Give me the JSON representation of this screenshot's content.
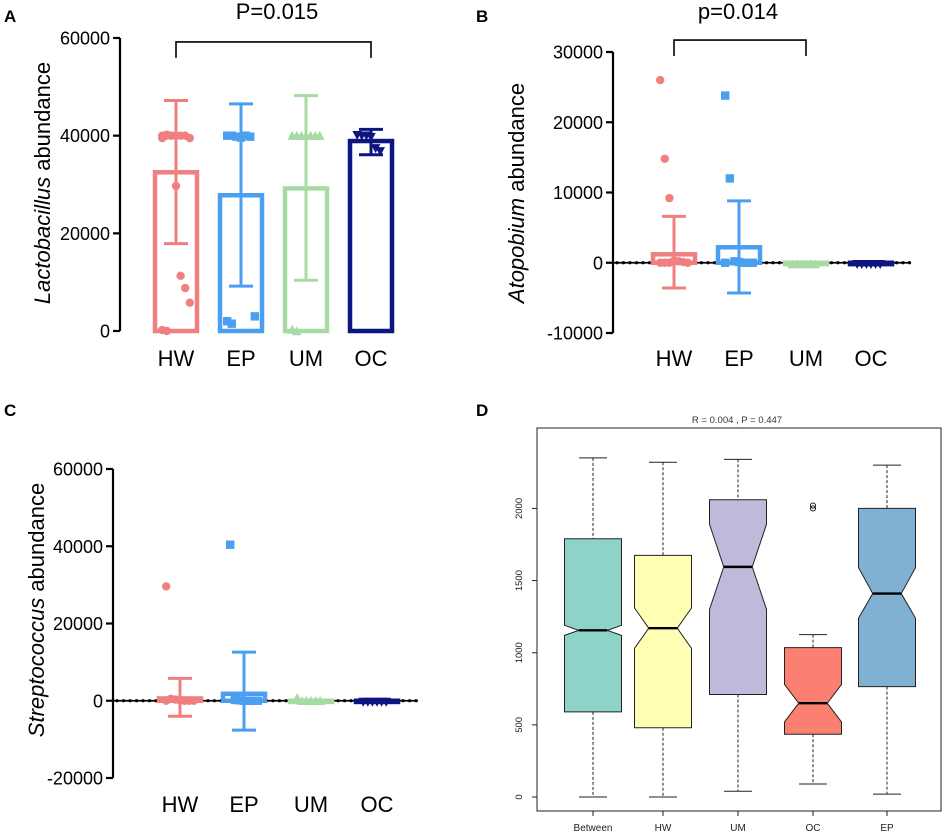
{
  "figure": {
    "panels": [
      {
        "letter": "A",
        "stat": "P=0.015"
      },
      {
        "letter": "B",
        "stat": "p=0.014"
      },
      {
        "letter": "C",
        "stat": ""
      },
      {
        "letter": "D",
        "stat": "R =  0.004 ,  P =  0.447"
      }
    ]
  },
  "colors": {
    "HW": "#f07f7f",
    "EP": "#4b9ff0",
    "UM": "#a8dba3",
    "OC": "#0d1680",
    "Between_box": "#8dd3c7",
    "HW_box": "#ffffb3",
    "UM_box": "#bebada",
    "OC_box": "#fb8072",
    "EP_box": "#80b1d3"
  },
  "chart_data": [
    {
      "panel": "A",
      "type": "bar",
      "title": "P=0.015",
      "ylabel_italic": "Lactobacillus",
      "ylabel_rest": " abundance",
      "categories": [
        "HW",
        "EP",
        "UM",
        "OC"
      ],
      "values": [
        32500,
        27800,
        29200,
        38900
      ],
      "error_low": [
        17900,
        9200,
        10400,
        36100
      ],
      "error_high": [
        47200,
        46500,
        48200,
        41300
      ],
      "ylim": [
        0,
        60000
      ],
      "yticks": [
        "0",
        "20000",
        "40000",
        "60000"
      ],
      "yticks_values": [
        0,
        20000,
        40000,
        60000
      ],
      "points": [
        [
          40000,
          40000,
          40000,
          40000,
          40000,
          40000,
          39500,
          39500,
          40200,
          40000,
          29700,
          11300,
          8800,
          5800,
          200,
          0
        ],
        [
          40000,
          40000,
          39800,
          39600,
          40000,
          39800,
          3000,
          2000,
          1500
        ],
        [
          40000,
          40000,
          40000,
          40000,
          40000,
          40000,
          40000,
          300,
          0
        ],
        [
          40100,
          40000,
          40000,
          39700,
          37400,
          36800
        ]
      ],
      "markers": [
        "circle",
        "square",
        "triangle",
        "triangle-down"
      ],
      "bracket": {
        "from": 0,
        "to": 3,
        "y": 59200
      }
    },
    {
      "panel": "B",
      "type": "bar",
      "title": "p=0.014",
      "ylabel_italic": "Atopobium",
      "ylabel_rest": " abundance",
      "categories": [
        "HW",
        "EP",
        "UM",
        "OC"
      ],
      "values": [
        1200,
        2200,
        -200,
        -200
      ],
      "error_low": [
        -3600,
        -4300,
        -200,
        -200
      ],
      "error_high": [
        6600,
        8800,
        -200,
        -200
      ],
      "ylim": [
        -10000,
        30000
      ],
      "yticks": [
        "-10000",
        "0",
        "10000",
        "20000",
        "30000"
      ],
      "yticks_values": [
        -10000,
        0,
        10000,
        20000,
        30000
      ],
      "points": [
        [
          26000,
          14800,
          9200,
          300,
          200,
          100,
          0,
          0,
          0,
          0
        ],
        [
          23800,
          12000,
          200,
          100,
          0,
          0,
          0,
          0
        ],
        [
          -200,
          -200,
          -200,
          -200,
          -200,
          -200
        ],
        [
          -200,
          -200,
          -200,
          -200,
          -200,
          -200
        ]
      ],
      "markers": [
        "circle",
        "square",
        "triangle",
        "triangle-down"
      ],
      "bracket": {
        "from": 0,
        "to": 2,
        "y": 31700
      }
    },
    {
      "panel": "C",
      "type": "bar",
      "title": "",
      "ylabel_italic": "Streptococcus",
      "ylabel_rest": " abundance",
      "categories": [
        "HW",
        "EP",
        "UM",
        "OC"
      ],
      "values": [
        600,
        1800,
        0,
        -300
      ],
      "error_low": [
        -4000,
        -7600,
        0,
        -300
      ],
      "error_high": [
        5800,
        12600,
        0,
        -300
      ],
      "ylim": [
        -20000,
        60000
      ],
      "yticks": [
        "-20000",
        "0",
        "20000",
        "40000",
        "60000"
      ],
      "yticks_values": [
        -20000,
        0,
        20000,
        40000,
        60000
      ],
      "points": [
        [
          29600,
          500,
          300,
          100,
          0,
          0,
          0,
          0
        ],
        [
          40400,
          200,
          100,
          0,
          0,
          0,
          0
        ],
        [
          800,
          0,
          0,
          0,
          0,
          0
        ],
        [
          -300,
          -300,
          -300,
          -300,
          -300,
          -300
        ]
      ],
      "markers": [
        "circle",
        "square",
        "triangle",
        "triangle-down"
      ],
      "bracket": null
    },
    {
      "panel": "D",
      "type": "box",
      "title": "R =  0.004 ,  P =  0.447",
      "categories": [
        "Between",
        "HW",
        "UM",
        "OC",
        "EP"
      ],
      "ylim": [
        0,
        2450
      ],
      "yticks": [
        "0",
        "500",
        "1000",
        "1500",
        "2000"
      ],
      "yticks_values": [
        0,
        500,
        1000,
        1500,
        2000
      ],
      "boxes": [
        {
          "name": "Between",
          "min": 0,
          "q1": 590,
          "median": 1155,
          "q3": 1790,
          "max": 2350,
          "notch_low": 1120,
          "notch_high": 1190,
          "outliers": []
        },
        {
          "name": "HW",
          "min": 0,
          "q1": 480,
          "median": 1170,
          "q3": 1675,
          "max": 2320,
          "notch_low": 1030,
          "notch_high": 1310,
          "outliers": []
        },
        {
          "name": "UM",
          "min": 40,
          "q1": 710,
          "median": 1595,
          "q3": 2060,
          "max": 2340,
          "notch_low": 1300,
          "notch_high": 1890,
          "outliers": []
        },
        {
          "name": "OC",
          "min": 90,
          "q1": 435,
          "median": 650,
          "q3": 1035,
          "max": 1125,
          "notch_low": 520,
          "notch_high": 780,
          "outliers": [
            2000,
            2020
          ]
        },
        {
          "name": "EP",
          "min": 20,
          "q1": 765,
          "median": 1410,
          "q3": 2000,
          "max": 2300,
          "notch_low": 1240,
          "notch_high": 1590,
          "outliers": []
        }
      ]
    }
  ]
}
